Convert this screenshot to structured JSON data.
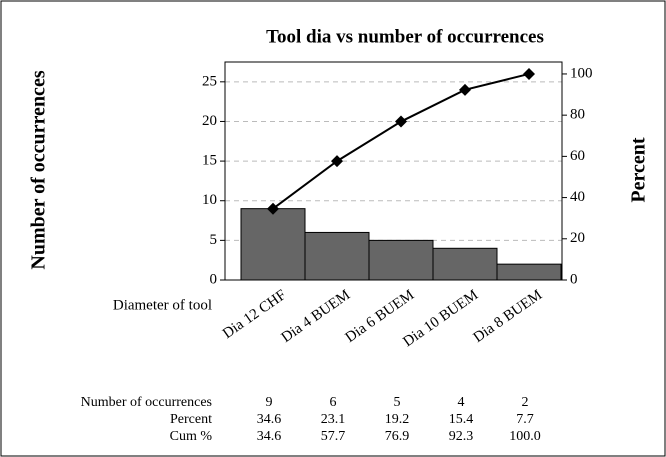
{
  "chart_data": {
    "type": "pareto",
    "title": "Tool dia vs number of occurrences",
    "y_label": "Number of occurrences",
    "y2_label": "Percent",
    "x_label": "Diameter of tool",
    "categories": [
      "Dia 12 CHF",
      "Dia 4 BUEM",
      "Dia 6 BUEM",
      "Dia 10 BUEM",
      "Dia 8 BUEM"
    ],
    "series": [
      {
        "name": "Number of occurrences",
        "color": "#666666",
        "values": [
          9,
          6,
          5,
          4,
          2
        ]
      },
      {
        "name": "Percent",
        "values": [
          34.6,
          23.1,
          19.2,
          15.4,
          7.7
        ]
      },
      {
        "name": "Cum %",
        "axis": "y2",
        "color": "#000000",
        "values": [
          34.6,
          57.7,
          76.9,
          92.3,
          100
        ],
        "value_labels": [
          "34.6",
          "57.7",
          "76.9",
          "92.3",
          "100.0"
        ]
      }
    ],
    "ylim": [
      0,
      27.5
    ],
    "yticks": [
      0,
      5,
      10,
      15,
      20,
      25
    ],
    "y2lim": [
      0,
      105.8
    ],
    "y2ticks": [
      0,
      20,
      40,
      60,
      80,
      100
    ],
    "grid": true
  }
}
